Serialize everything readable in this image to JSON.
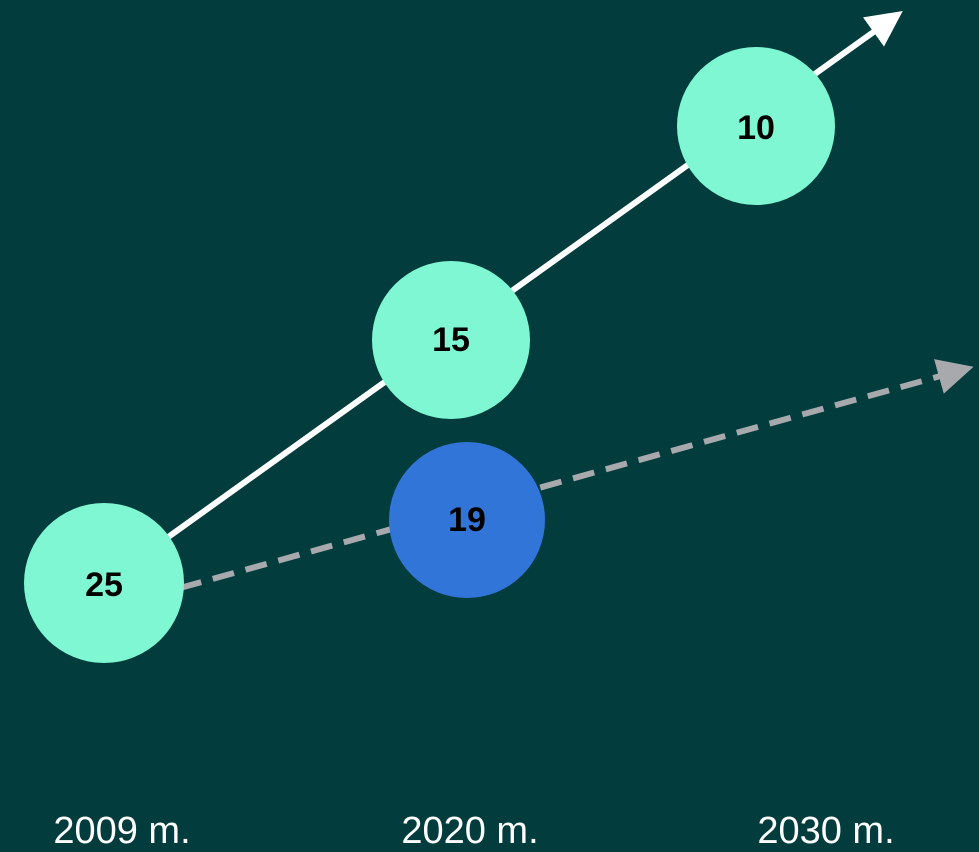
{
  "nodes": [
    {
      "label": "25"
    },
    {
      "label": "15"
    },
    {
      "label": "10"
    },
    {
      "label": "19"
    }
  ],
  "years": [
    "2009 m.",
    "2020 m.",
    "2030 m."
  ]
}
